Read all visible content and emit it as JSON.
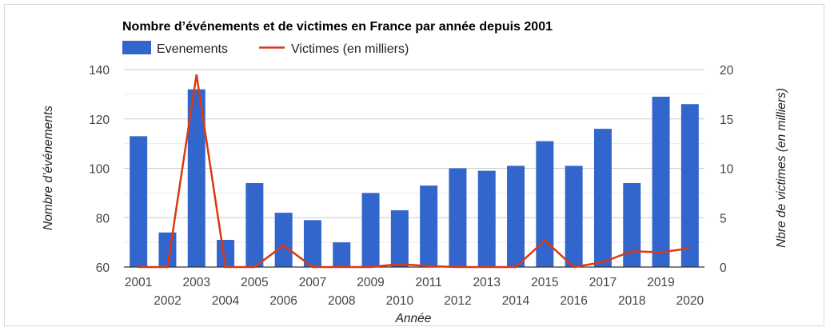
{
  "chart_data": {
    "type": "bar",
    "title": "Nombre d’événements et de victimes en France par année depuis 2001",
    "xlabel": "Année",
    "ylabel": "Nombre d’événements",
    "y2label": "Nbre de victimes (en milliers)",
    "categories": [
      "2001",
      "2002",
      "2003",
      "2004",
      "2005",
      "2006",
      "2007",
      "2008",
      "2009",
      "2010",
      "2011",
      "2012",
      "2013",
      "2014",
      "2015",
      "2016",
      "2017",
      "2018",
      "2019",
      "2020"
    ],
    "series": [
      {
        "name": "Evenements",
        "type": "bar",
        "axis": "left",
        "color": "#3366cc",
        "values": [
          113,
          74,
          132,
          71,
          94,
          82,
          79,
          70,
          90,
          83,
          93,
          100,
          99,
          101,
          111,
          101,
          116,
          94,
          129,
          126
        ]
      },
      {
        "name": "Victimes (en milliers)",
        "type": "line",
        "axis": "right",
        "color": "#dc3912",
        "values": [
          0,
          0,
          19.5,
          0,
          0,
          2.2,
          0,
          0,
          0,
          0.3,
          0.1,
          0,
          0,
          0,
          2.7,
          0,
          0.5,
          1.6,
          1.5,
          1.9
        ]
      }
    ],
    "ylim": [
      60,
      140
    ],
    "y2lim": [
      0,
      20
    ],
    "yticks": [
      "60",
      "80",
      "100",
      "120",
      "140"
    ],
    "y2ticks": [
      "0",
      "5",
      "10",
      "15",
      "20"
    ],
    "grid": true,
    "legend": "top-left"
  }
}
